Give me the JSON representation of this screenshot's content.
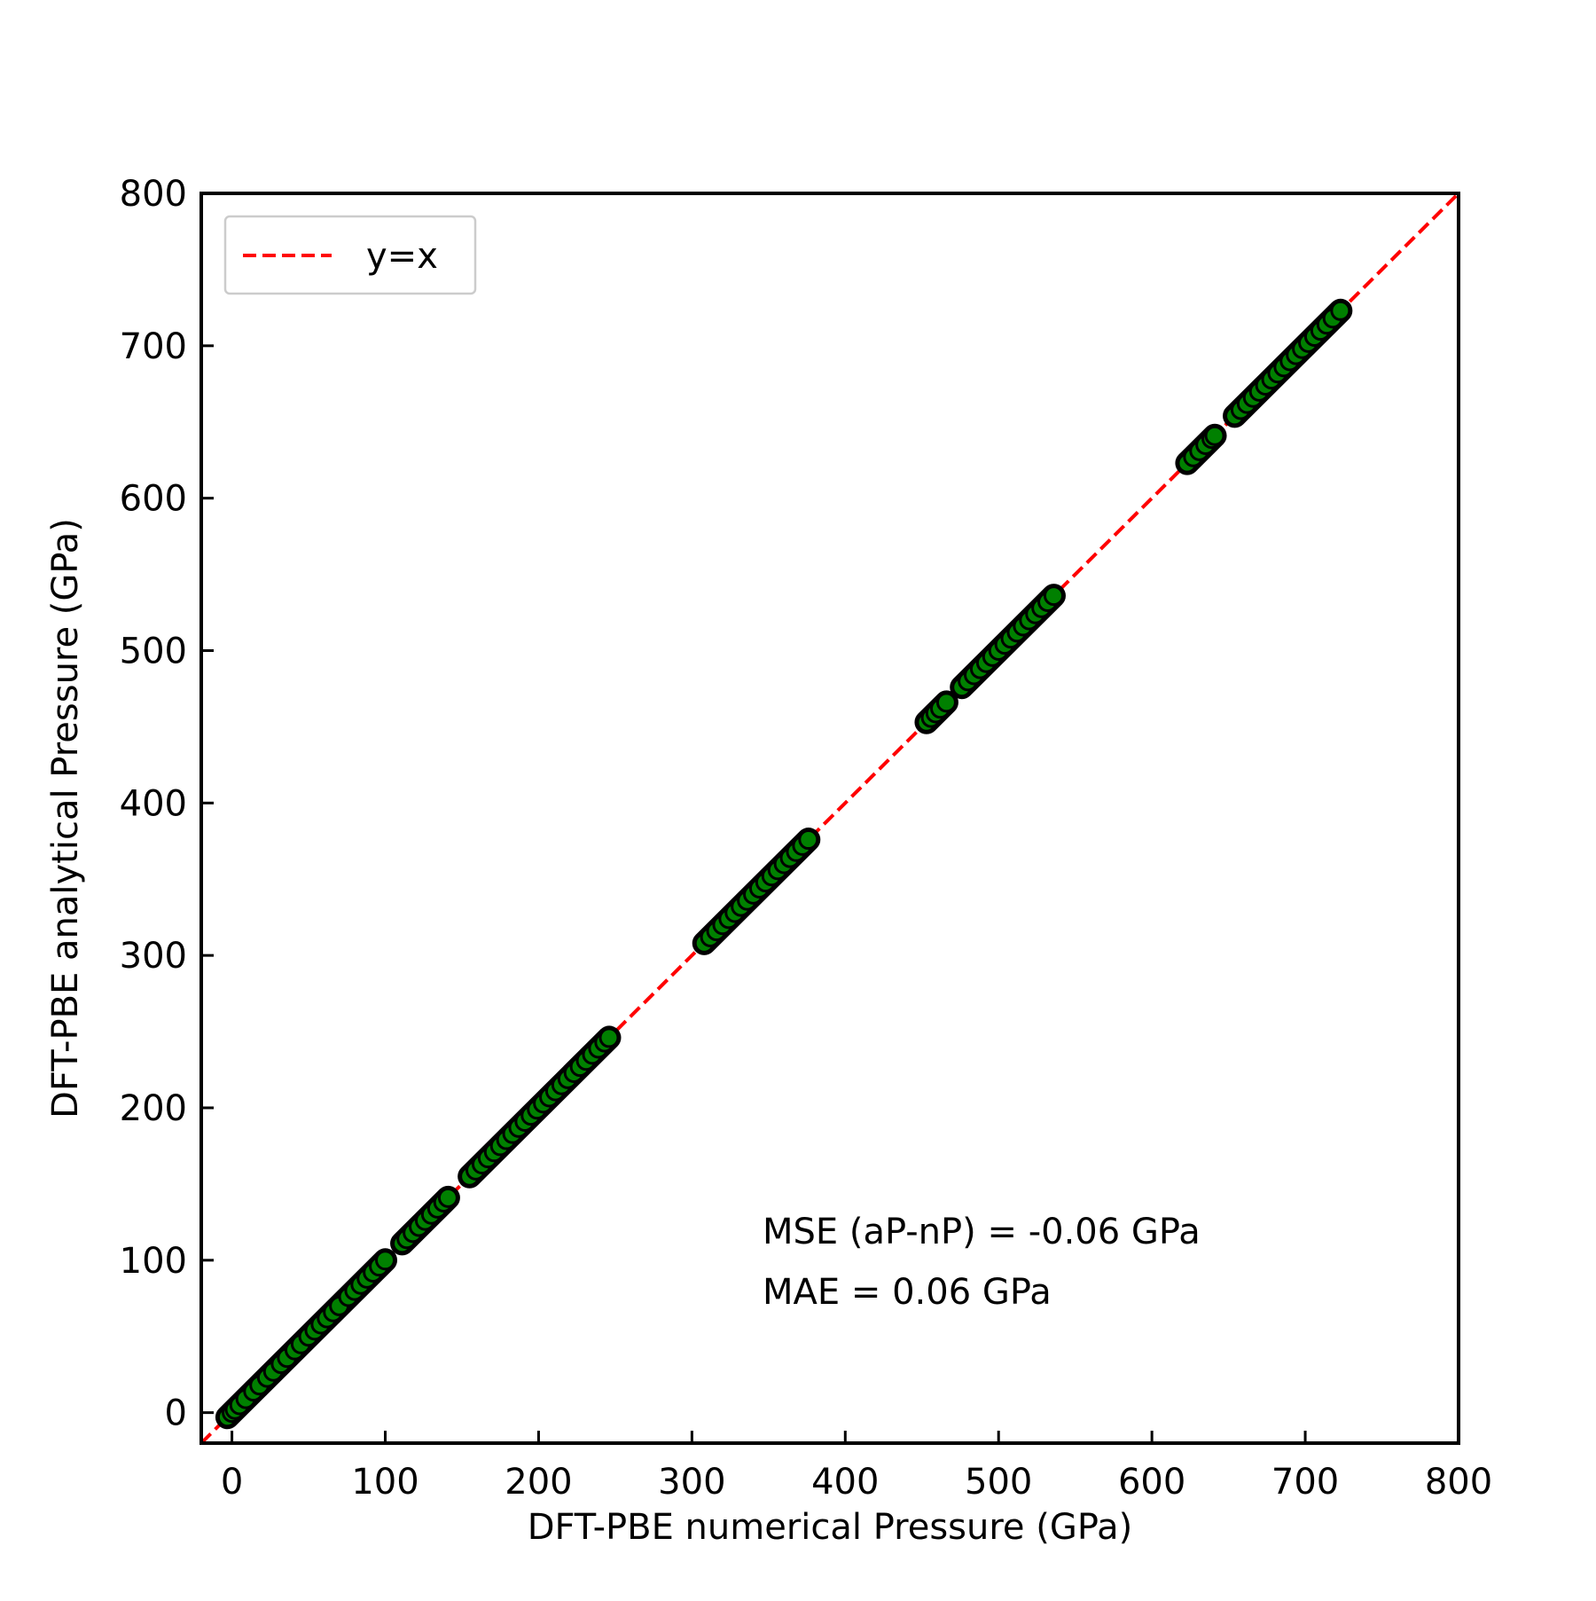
{
  "chart_data": {
    "type": "scatter",
    "title": "",
    "xlabel": "DFT-PBE numerical Pressure (GPa)",
    "ylabel": "DFT-PBE analytical Pressure (GPa)",
    "xlim": [
      -20,
      800
    ],
    "ylim": [
      -20,
      800
    ],
    "xticks": [
      "0",
      "100",
      "200",
      "300",
      "400",
      "500",
      "600",
      "700",
      "800"
    ],
    "yticks": [
      "0",
      "100",
      "200",
      "300",
      "400",
      "500",
      "600",
      "700",
      "800"
    ],
    "grid": false,
    "legend": {
      "placement": "top-left",
      "entries": [
        {
          "label": "y=x",
          "color": "#ff0000",
          "style": "dashed"
        }
      ]
    },
    "reference_line": {
      "label": "y=x",
      "color": "#ff0000",
      "style": "dashed"
    },
    "marker_fill": "#008000",
    "marker_edge": "#000000",
    "annotations": [
      "MSE (aP-nP) = -0.06 GPa",
      "MAE = 0.06 GPa"
    ],
    "segments": [
      {
        "from": -3,
        "to": 100
      },
      {
        "from": 111,
        "to": 141
      },
      {
        "from": 155,
        "to": 246
      },
      {
        "from": 308,
        "to": 376
      },
      {
        "from": 453,
        "to": 466
      },
      {
        "from": 476,
        "to": 536
      },
      {
        "from": 623,
        "to": 641
      },
      {
        "from": 654,
        "to": 723
      }
    ],
    "series": [
      {
        "x": [
          -3,
          0,
          2,
          5,
          9,
          14,
          18,
          23,
          27,
          32,
          36,
          41,
          45,
          50,
          54,
          58,
          62,
          66,
          70,
          76,
          80,
          84,
          88,
          92,
          96,
          100,
          111,
          114,
          118,
          122,
          126,
          130,
          134,
          138,
          141,
          155,
          159,
          163,
          167,
          171,
          175,
          179,
          183,
          187,
          191,
          195,
          199,
          203,
          207,
          211,
          215,
          219,
          223,
          227,
          231,
          235,
          239,
          243,
          246,
          308,
          312,
          316,
          320,
          324,
          328,
          332,
          336,
          340,
          344,
          348,
          352,
          356,
          360,
          364,
          368,
          372,
          376,
          453,
          456,
          459,
          462,
          466,
          476,
          480,
          484,
          488,
          492,
          496,
          500,
          504,
          508,
          512,
          516,
          520,
          524,
          528,
          532,
          536,
          623,
          627,
          631,
          635,
          639,
          641,
          654,
          658,
          662,
          666,
          670,
          674,
          678,
          682,
          686,
          690,
          694,
          698,
          702,
          706,
          710,
          714,
          718,
          723
        ],
        "y": [
          -3,
          0,
          2,
          5,
          9,
          14,
          18,
          23,
          27,
          32,
          36,
          41,
          45,
          50,
          54,
          58,
          62,
          66,
          70,
          76,
          80,
          84,
          88,
          92,
          96,
          100,
          111,
          114,
          118,
          122,
          126,
          130,
          134,
          138,
          141,
          155,
          159,
          163,
          167,
          171,
          175,
          179,
          183,
          187,
          191,
          195,
          199,
          203,
          207,
          211,
          215,
          219,
          223,
          227,
          231,
          235,
          239,
          243,
          246,
          308,
          312,
          316,
          320,
          324,
          328,
          332,
          336,
          340,
          344,
          348,
          352,
          356,
          360,
          364,
          368,
          372,
          376,
          453,
          456,
          459,
          462,
          466,
          476,
          480,
          484,
          488,
          492,
          496,
          500,
          504,
          508,
          512,
          516,
          520,
          524,
          528,
          532,
          536,
          623,
          627,
          631,
          635,
          639,
          641,
          654,
          658,
          662,
          666,
          670,
          674,
          678,
          682,
          686,
          690,
          694,
          698,
          702,
          706,
          710,
          714,
          718,
          723
        ]
      }
    ]
  }
}
